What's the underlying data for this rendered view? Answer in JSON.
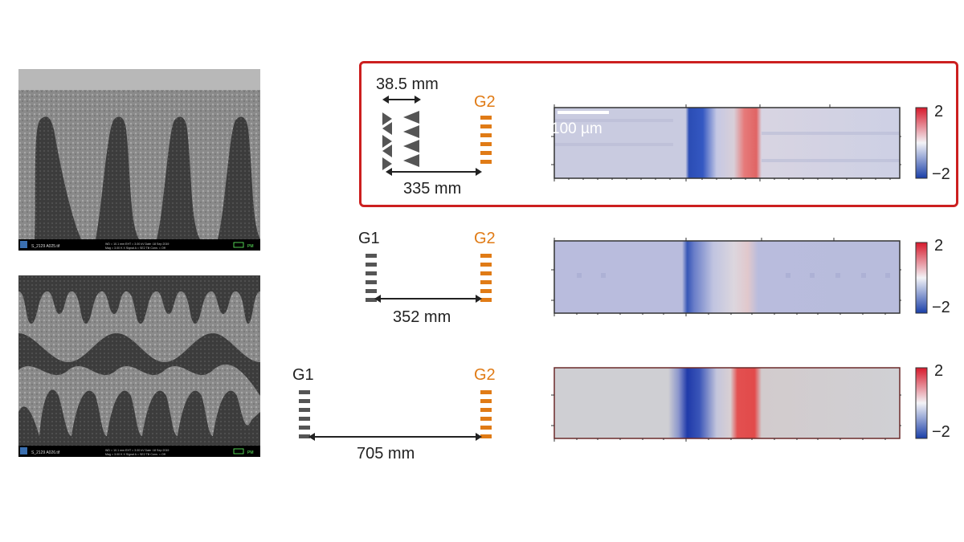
{
  "sem_images": [
    {
      "name": "single-grating-sem",
      "footer_left": "S_2129 A025.tif"
    },
    {
      "name": "double-grating-sem",
      "footer_left": "S_2129 A026.tif"
    }
  ],
  "sem_footer_text": "WD = 10.1 mm   EHT = 3.00 kV   Date :18 Sep 2019   Stage at Z = 23.400 mm",
  "sem_footer_text2": "Mag = 3.00 K X   Signal A = SE2   Tilt Conn. = Off   Stage at T = 0.0°",
  "rows": [
    {
      "left_label": "38.5 mm",
      "g2_label": "G2",
      "distance_label": "335 mm",
      "scale_bar_label": "100 µm",
      "colorbar_max": "2",
      "colorbar_min": "−2"
    },
    {
      "g1_label": "G1",
      "g2_label": "G2",
      "distance_label": "352 mm",
      "colorbar_max": "2",
      "colorbar_min": "−2"
    },
    {
      "g1_label": "G1",
      "g2_label": "G2",
      "distance_label": "705 mm",
      "colorbar_max": "2",
      "colorbar_min": "−2"
    }
  ],
  "colors": {
    "highlight_border": "#cc1f1f",
    "g1_grating": "#555555",
    "g2_grating": "#e07b16",
    "heat_negative": "#1a3fa8",
    "heat_positive": "#e03a3a"
  }
}
